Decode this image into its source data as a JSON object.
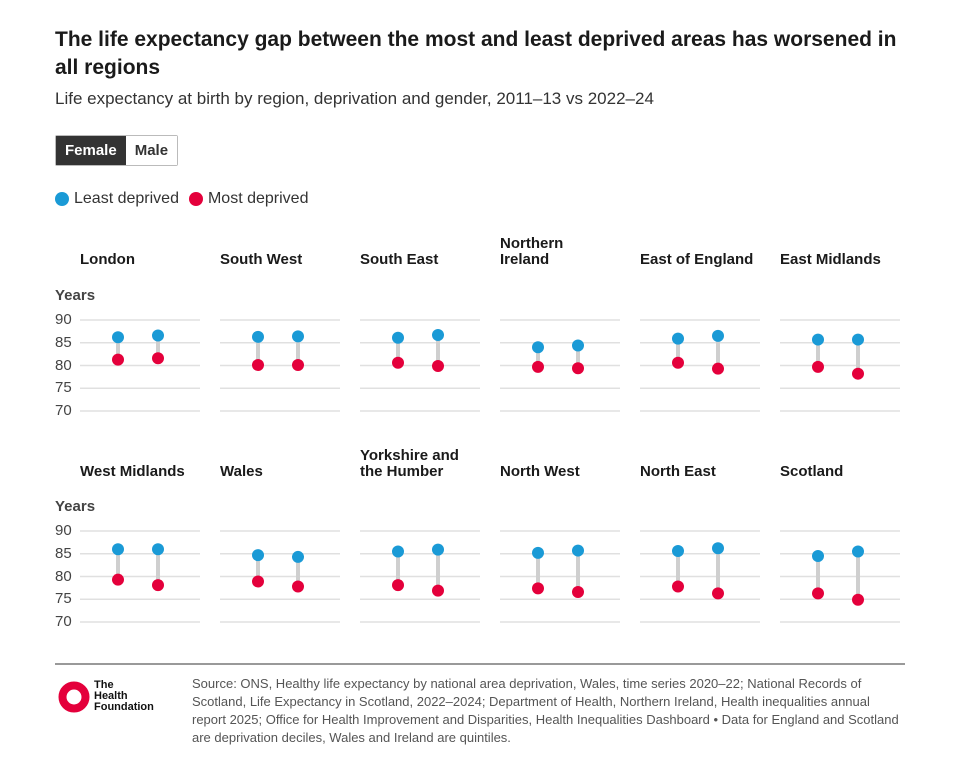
{
  "title": "The life expectancy gap between the most and least deprived areas has worsened in all regions",
  "subtitle": "Life expectancy at birth by region, deprivation and gender, 2011–13 vs 2022–24",
  "toggle": {
    "options": [
      "Female",
      "Male"
    ],
    "selected": "Female"
  },
  "legend": [
    {
      "label": "Least deprived",
      "color": "#1a9ad6"
    },
    {
      "label": "Most deprived",
      "color": "#e4003b"
    }
  ],
  "colors": {
    "least": "#1a9ad6",
    "most": "#e4003b",
    "connector": "#cfcfcf",
    "grid": "#e0e0e0"
  },
  "chart_data": {
    "type": "dumbbell",
    "ylabel": "Years",
    "ylim": [
      70,
      90
    ],
    "yticks": [
      90,
      85,
      80,
      75,
      70
    ],
    "periods": [
      "2011–13",
      "2022–24"
    ],
    "panels": [
      {
        "region": [
          "London"
        ],
        "least": [
          86.2,
          86.6
        ],
        "most": [
          81.3,
          81.6
        ]
      },
      {
        "region": [
          "South West"
        ],
        "least": [
          86.3,
          86.4
        ],
        "most": [
          80.1,
          80.1
        ]
      },
      {
        "region": [
          "South East"
        ],
        "least": [
          86.1,
          86.7
        ],
        "most": [
          80.6,
          79.9
        ]
      },
      {
        "region": [
          "Northern",
          "Ireland"
        ],
        "least": [
          84.0,
          84.4
        ],
        "most": [
          79.7,
          79.4
        ]
      },
      {
        "region": [
          "East of England"
        ],
        "least": [
          85.9,
          86.5
        ],
        "most": [
          80.6,
          79.3
        ]
      },
      {
        "region": [
          "East Midlands"
        ],
        "least": [
          85.7,
          85.7
        ],
        "most": [
          79.7,
          78.2
        ]
      },
      {
        "region": [
          "West Midlands"
        ],
        "least": [
          86.0,
          86.0
        ],
        "most": [
          79.3,
          78.1
        ]
      },
      {
        "region": [
          "Wales"
        ],
        "least": [
          84.7,
          84.3
        ],
        "most": [
          78.9,
          77.8
        ]
      },
      {
        "region": [
          "Yorkshire and",
          "the Humber"
        ],
        "least": [
          85.5,
          85.9
        ],
        "most": [
          78.1,
          76.9
        ]
      },
      {
        "region": [
          "North West"
        ],
        "least": [
          85.2,
          85.7
        ],
        "most": [
          77.4,
          76.6
        ]
      },
      {
        "region": [
          "North East"
        ],
        "least": [
          85.6,
          86.2
        ],
        "most": [
          77.8,
          76.3
        ]
      },
      {
        "region": [
          "Scotland"
        ],
        "least": [
          84.5,
          85.5
        ],
        "most": [
          76.3,
          74.9
        ]
      }
    ]
  },
  "footer": {
    "logo_text": "The Health Foundation",
    "source": "Source: ONS, Healthy life expectancy by national area deprivation, Wales, time series 2020–22; National Records of Scotland, Life Expectancy in Scotland, 2022–2024; Department of Health, Northern Ireland, Health inequalities annual report 2025; Office for Health Improvement and Disparities, Health Inequalities Dashboard • Data for England and Scotland are deprivation deciles, Wales and Ireland are quintiles."
  }
}
